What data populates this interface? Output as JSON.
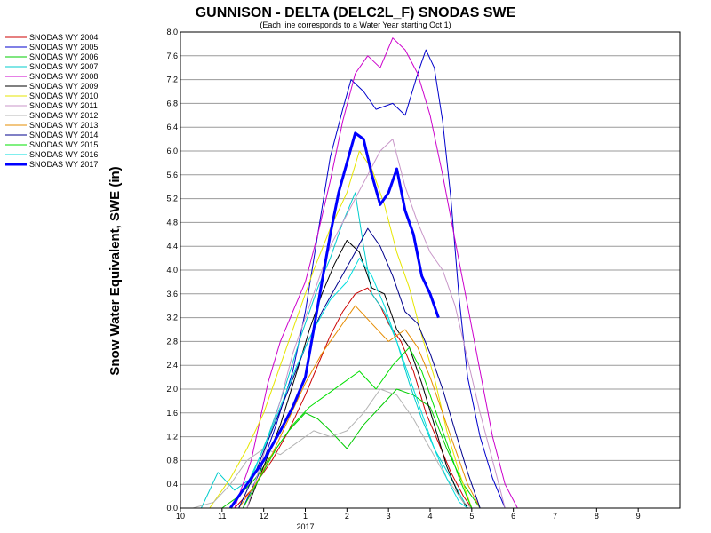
{
  "chart_data": {
    "type": "line",
    "title": "GUNNISON - DELTA (DELC2L_F) SNODAS SWE",
    "subtitle": "(Each line corresponds to a Water Year starting Oct 1)",
    "ylabel": "Snow Water Equivalent, SWE (in)",
    "xlabel": "",
    "ylim": [
      0,
      8.0
    ],
    "yticks": [
      "0.0",
      "0.4",
      "0.8",
      "1.2",
      "1.6",
      "2.0",
      "2.4",
      "2.8",
      "3.2",
      "3.6",
      "4.0",
      "4.4",
      "4.8",
      "5.2",
      "5.6",
      "6.0",
      "6.4",
      "6.8",
      "7.2",
      "7.6",
      "8.0"
    ],
    "xticks": [
      {
        "label": "10",
        "month": 10
      },
      {
        "label": "11",
        "month": 11
      },
      {
        "label": "12",
        "month": 12
      },
      {
        "label": "1",
        "month": 1,
        "sublabel": "2017"
      },
      {
        "label": "2",
        "month": 2
      },
      {
        "label": "3",
        "month": 3
      },
      {
        "label": "4",
        "month": 4
      },
      {
        "label": "5",
        "month": 5
      },
      {
        "label": "6",
        "month": 6
      },
      {
        "label": "7",
        "month": 7
      },
      {
        "label": "8",
        "month": 8
      },
      {
        "label": "9",
        "month": 9
      }
    ],
    "x_unit": "months after Oct 1",
    "grid": true,
    "legend_position": "left",
    "series": [
      {
        "name": "SNODAS WY 2004",
        "color": "#cc0000",
        "width": 1,
        "points": [
          [
            1.3,
            0
          ],
          [
            1.7,
            0.3
          ],
          [
            2.2,
            0.8
          ],
          [
            2.6,
            1.3
          ],
          [
            3.0,
            1.9
          ],
          [
            3.3,
            2.4
          ],
          [
            3.6,
            2.9
          ],
          [
            3.9,
            3.3
          ],
          [
            4.2,
            3.6
          ],
          [
            4.5,
            3.7
          ],
          [
            4.8,
            3.4
          ],
          [
            5.0,
            3.1
          ],
          [
            5.3,
            2.8
          ],
          [
            5.6,
            2.3
          ],
          [
            5.9,
            1.6
          ],
          [
            6.2,
            1.1
          ],
          [
            6.5,
            0.6
          ],
          [
            6.8,
            0.2
          ],
          [
            7.0,
            0
          ]
        ]
      },
      {
        "name": "SNODAS WY 2005",
        "color": "#0000cc",
        "width": 1,
        "points": [
          [
            1.5,
            0
          ],
          [
            1.9,
            0.6
          ],
          [
            2.3,
            1.4
          ],
          [
            2.7,
            2.3
          ],
          [
            3.0,
            3.3
          ],
          [
            3.3,
            4.6
          ],
          [
            3.6,
            5.9
          ],
          [
            3.9,
            6.7
          ],
          [
            4.1,
            7.2
          ],
          [
            4.4,
            7.0
          ],
          [
            4.7,
            6.7
          ],
          [
            5.1,
            6.8
          ],
          [
            5.4,
            6.6
          ],
          [
            5.7,
            7.3
          ],
          [
            5.9,
            7.7
          ],
          [
            6.1,
            7.4
          ],
          [
            6.3,
            6.5
          ],
          [
            6.5,
            5.2
          ],
          [
            6.7,
            3.5
          ],
          [
            6.9,
            2.2
          ],
          [
            7.2,
            1.2
          ],
          [
            7.5,
            0.5
          ],
          [
            7.8,
            0
          ]
        ]
      },
      {
        "name": "SNODAS WY 2006",
        "color": "#00cc00",
        "width": 1,
        "points": [
          [
            1.0,
            0
          ],
          [
            1.4,
            0.2
          ],
          [
            1.8,
            0.5
          ],
          [
            2.2,
            0.9
          ],
          [
            2.6,
            1.3
          ],
          [
            3.0,
            1.6
          ],
          [
            3.3,
            1.5
          ],
          [
            3.6,
            1.3
          ],
          [
            4.0,
            1.0
          ],
          [
            4.4,
            1.4
          ],
          [
            4.8,
            1.7
          ],
          [
            5.2,
            2.0
          ],
          [
            5.6,
            1.9
          ],
          [
            6.0,
            1.7
          ],
          [
            6.4,
            1.0
          ],
          [
            6.8,
            0.4
          ],
          [
            7.2,
            0
          ]
        ]
      },
      {
        "name": "SNODAS WY 2007",
        "color": "#00cccc",
        "width": 1,
        "points": [
          [
            0.5,
            0
          ],
          [
            0.9,
            0.6
          ],
          [
            1.3,
            0.3
          ],
          [
            1.7,
            0.5
          ],
          [
            2.1,
            1.2
          ],
          [
            2.5,
            2.0
          ],
          [
            2.9,
            2.9
          ],
          [
            3.3,
            3.7
          ],
          [
            3.6,
            4.2
          ],
          [
            3.9,
            4.8
          ],
          [
            4.2,
            5.3
          ],
          [
            4.4,
            4.4
          ],
          [
            4.6,
            3.6
          ],
          [
            4.9,
            3.3
          ],
          [
            5.2,
            2.8
          ],
          [
            5.5,
            2.1
          ],
          [
            5.8,
            1.5
          ],
          [
            6.1,
            1.0
          ],
          [
            6.5,
            0.5
          ],
          [
            6.9,
            0
          ]
        ]
      },
      {
        "name": "SNODAS WY 2008",
        "color": "#cc00cc",
        "width": 1,
        "points": [
          [
            1.3,
            0
          ],
          [
            1.7,
            0.8
          ],
          [
            2.1,
            2.1
          ],
          [
            2.4,
            2.8
          ],
          [
            2.7,
            3.3
          ],
          [
            3.0,
            3.8
          ],
          [
            3.3,
            4.6
          ],
          [
            3.6,
            5.5
          ],
          [
            3.9,
            6.5
          ],
          [
            4.2,
            7.3
          ],
          [
            4.5,
            7.6
          ],
          [
            4.8,
            7.4
          ],
          [
            5.1,
            7.9
          ],
          [
            5.4,
            7.7
          ],
          [
            5.7,
            7.3
          ],
          [
            6.0,
            6.6
          ],
          [
            6.3,
            5.6
          ],
          [
            6.6,
            4.5
          ],
          [
            6.9,
            3.4
          ],
          [
            7.2,
            2.3
          ],
          [
            7.5,
            1.2
          ],
          [
            7.8,
            0.4
          ],
          [
            8.1,
            0
          ]
        ]
      },
      {
        "name": "SNODAS WY 2009",
        "color": "#000000",
        "width": 1,
        "points": [
          [
            1.6,
            0
          ],
          [
            2.0,
            0.7
          ],
          [
            2.4,
            1.4
          ],
          [
            2.8,
            2.3
          ],
          [
            3.1,
            3.0
          ],
          [
            3.4,
            3.6
          ],
          [
            3.7,
            4.1
          ],
          [
            4.0,
            4.5
          ],
          [
            4.3,
            4.3
          ],
          [
            4.6,
            3.7
          ],
          [
            4.9,
            3.6
          ],
          [
            5.2,
            3.0
          ],
          [
            5.5,
            2.7
          ],
          [
            5.8,
            2.1
          ],
          [
            6.1,
            1.4
          ],
          [
            6.4,
            0.7
          ],
          [
            6.7,
            0.2
          ],
          [
            6.9,
            0
          ]
        ]
      },
      {
        "name": "SNODAS WY 2010",
        "color": "#e6e600",
        "width": 1,
        "points": [
          [
            0.7,
            0
          ],
          [
            1.2,
            0.5
          ],
          [
            1.6,
            1.0
          ],
          [
            2.0,
            1.6
          ],
          [
            2.4,
            2.4
          ],
          [
            2.8,
            3.2
          ],
          [
            3.2,
            4.0
          ],
          [
            3.6,
            4.7
          ],
          [
            4.0,
            5.3
          ],
          [
            4.3,
            6.0
          ],
          [
            4.6,
            5.7
          ],
          [
            4.9,
            5.1
          ],
          [
            5.2,
            4.3
          ],
          [
            5.5,
            3.7
          ],
          [
            5.8,
            2.9
          ],
          [
            6.1,
            2.2
          ],
          [
            6.4,
            1.3
          ],
          [
            6.7,
            0.6
          ],
          [
            7.0,
            0
          ]
        ]
      },
      {
        "name": "SNODAS WY 2011",
        "color": "#c896c8",
        "width": 1,
        "points": [
          [
            1.6,
            0
          ],
          [
            2.0,
            0.9
          ],
          [
            2.4,
            1.8
          ],
          [
            2.7,
            2.6
          ],
          [
            3.0,
            3.2
          ],
          [
            3.3,
            3.8
          ],
          [
            3.6,
            4.4
          ],
          [
            3.9,
            4.8
          ],
          [
            4.2,
            5.2
          ],
          [
            4.5,
            5.6
          ],
          [
            4.8,
            6.0
          ],
          [
            5.1,
            6.2
          ],
          [
            5.4,
            5.4
          ],
          [
            5.7,
            4.8
          ],
          [
            6.0,
            4.3
          ],
          [
            6.3,
            4.0
          ],
          [
            6.6,
            3.4
          ],
          [
            6.9,
            2.5
          ],
          [
            7.2,
            1.6
          ],
          [
            7.5,
            0.8
          ],
          [
            7.8,
            0
          ]
        ]
      },
      {
        "name": "SNODAS WY 2012",
        "color": "#b4b4b4",
        "width": 1,
        "points": [
          [
            0.3,
            0
          ],
          [
            0.8,
            0.1
          ],
          [
            1.2,
            0.4
          ],
          [
            1.6,
            0.8
          ],
          [
            2.0,
            1.0
          ],
          [
            2.4,
            0.9
          ],
          [
            2.8,
            1.1
          ],
          [
            3.2,
            1.3
          ],
          [
            3.6,
            1.2
          ],
          [
            4.0,
            1.3
          ],
          [
            4.4,
            1.6
          ],
          [
            4.8,
            2.0
          ],
          [
            5.2,
            1.9
          ],
          [
            5.6,
            1.5
          ],
          [
            6.0,
            1.0
          ],
          [
            6.4,
            0.5
          ],
          [
            6.8,
            0.1
          ],
          [
            7.0,
            0
          ]
        ]
      },
      {
        "name": "SNODAS WY 2013",
        "color": "#e68c00",
        "width": 1,
        "points": [
          [
            1.4,
            0
          ],
          [
            1.8,
            0.4
          ],
          [
            2.2,
            0.9
          ],
          [
            2.6,
            1.5
          ],
          [
            3.0,
            2.1
          ],
          [
            3.4,
            2.6
          ],
          [
            3.8,
            3.0
          ],
          [
            4.2,
            3.4
          ],
          [
            4.6,
            3.1
          ],
          [
            5.0,
            2.8
          ],
          [
            5.4,
            3.0
          ],
          [
            5.7,
            2.7
          ],
          [
            6.0,
            2.2
          ],
          [
            6.3,
            1.6
          ],
          [
            6.6,
            1.0
          ],
          [
            6.9,
            0.4
          ],
          [
            7.2,
            0
          ]
        ]
      },
      {
        "name": "SNODAS WY 2014",
        "color": "#00008c",
        "width": 1,
        "points": [
          [
            1.4,
            0
          ],
          [
            1.8,
            0.6
          ],
          [
            2.2,
            1.3
          ],
          [
            2.6,
            2.0
          ],
          [
            3.0,
            2.7
          ],
          [
            3.4,
            3.3
          ],
          [
            3.8,
            3.8
          ],
          [
            4.2,
            4.3
          ],
          [
            4.5,
            4.7
          ],
          [
            4.8,
            4.4
          ],
          [
            5.1,
            3.9
          ],
          [
            5.4,
            3.3
          ],
          [
            5.7,
            3.1
          ],
          [
            6.0,
            2.6
          ],
          [
            6.3,
            2.0
          ],
          [
            6.6,
            1.3
          ],
          [
            6.9,
            0.6
          ],
          [
            7.2,
            0
          ]
        ]
      },
      {
        "name": "SNODAS WY 2015",
        "color": "#00e000",
        "width": 1,
        "points": [
          [
            1.5,
            0
          ],
          [
            1.9,
            0.5
          ],
          [
            2.3,
            1.0
          ],
          [
            2.7,
            1.4
          ],
          [
            3.1,
            1.7
          ],
          [
            3.5,
            1.9
          ],
          [
            3.9,
            2.1
          ],
          [
            4.3,
            2.3
          ],
          [
            4.7,
            2.0
          ],
          [
            5.1,
            2.4
          ],
          [
            5.5,
            2.7
          ],
          [
            5.8,
            2.3
          ],
          [
            6.1,
            1.7
          ],
          [
            6.4,
            1.1
          ],
          [
            6.7,
            0.5
          ],
          [
            7.0,
            0
          ]
        ]
      },
      {
        "name": "SNODAS WY 2016",
        "color": "#00dede",
        "width": 1,
        "points": [
          [
            1.2,
            0
          ],
          [
            1.6,
            0.4
          ],
          [
            2.0,
            1.0
          ],
          [
            2.4,
            1.7
          ],
          [
            2.8,
            2.4
          ],
          [
            3.2,
            3.0
          ],
          [
            3.6,
            3.5
          ],
          [
            4.0,
            3.8
          ],
          [
            4.3,
            4.2
          ],
          [
            4.6,
            3.9
          ],
          [
            4.9,
            3.4
          ],
          [
            5.2,
            2.8
          ],
          [
            5.5,
            2.2
          ],
          [
            5.8,
            1.6
          ],
          [
            6.1,
            1.0
          ],
          [
            6.4,
            0.5
          ],
          [
            6.7,
            0.1
          ],
          [
            6.9,
            0
          ]
        ]
      },
      {
        "name": "SNODAS WY 2017",
        "color": "#0000ff",
        "width": 3,
        "points": [
          [
            1.2,
            0
          ],
          [
            1.6,
            0.4
          ],
          [
            2.0,
            0.8
          ],
          [
            2.4,
            1.3
          ],
          [
            2.7,
            1.7
          ],
          [
            3.0,
            2.2
          ],
          [
            3.2,
            3.0
          ],
          [
            3.4,
            3.8
          ],
          [
            3.6,
            4.6
          ],
          [
            3.8,
            5.3
          ],
          [
            4.0,
            5.8
          ],
          [
            4.2,
            6.3
          ],
          [
            4.4,
            6.2
          ],
          [
            4.6,
            5.6
          ],
          [
            4.8,
            5.1
          ],
          [
            5.0,
            5.3
          ],
          [
            5.2,
            5.7
          ],
          [
            5.4,
            5.0
          ],
          [
            5.6,
            4.6
          ],
          [
            5.8,
            3.9
          ],
          [
            6.0,
            3.6
          ],
          [
            6.2,
            3.2
          ]
        ]
      }
    ]
  }
}
